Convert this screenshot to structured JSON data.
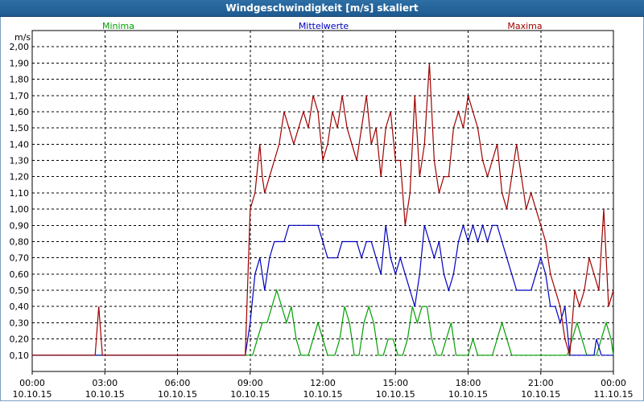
{
  "window": {
    "title": "Windgeschwindigkeit [m/s] skaliert"
  },
  "chart_data": {
    "type": "line",
    "title": "Windgeschwindigkeit [m/s] skaliert",
    "ylabel": "m/s",
    "ylim": [
      0,
      2.1
    ],
    "yticks": [
      "0,10",
      "0,20",
      "0,30",
      "0,40",
      "0,50",
      "0,60",
      "0,70",
      "0,80",
      "0,90",
      "1,00",
      "1,10",
      "1,20",
      "1,30",
      "1,40",
      "1,50",
      "1,60",
      "1,70",
      "1,80",
      "1,90",
      "2,00"
    ],
    "xlim": [
      0,
      24
    ],
    "xticks": [
      {
        "time": "00:00",
        "date": "10.10.15"
      },
      {
        "time": "03:00",
        "date": "10.10.15"
      },
      {
        "time": "06:00",
        "date": "10.10.15"
      },
      {
        "time": "09:00",
        "date": "10.10.15"
      },
      {
        "time": "12:00",
        "date": "10.10.15"
      },
      {
        "time": "15:00",
        "date": "10.10.15"
      },
      {
        "time": "18:00",
        "date": "10.10.15"
      },
      {
        "time": "21:00",
        "date": "10.10.15"
      },
      {
        "time": "00:00",
        "date": "11.10.15"
      }
    ],
    "grid": true,
    "legend_position": "top",
    "series": [
      {
        "name": "Minima",
        "color": "#00a000",
        "points": [
          [
            0,
            0.1
          ],
          [
            8.8,
            0.1
          ],
          [
            9.1,
            0.1
          ],
          [
            9.3,
            0.2
          ],
          [
            9.5,
            0.3
          ],
          [
            9.7,
            0.3
          ],
          [
            9.9,
            0.4
          ],
          [
            10.1,
            0.5
          ],
          [
            10.3,
            0.4
          ],
          [
            10.5,
            0.3
          ],
          [
            10.7,
            0.4
          ],
          [
            10.9,
            0.2
          ],
          [
            11.1,
            0.1
          ],
          [
            11.4,
            0.1
          ],
          [
            11.6,
            0.2
          ],
          [
            11.8,
            0.3
          ],
          [
            12.0,
            0.2
          ],
          [
            12.2,
            0.1
          ],
          [
            12.5,
            0.1
          ],
          [
            12.7,
            0.2
          ],
          [
            12.9,
            0.4
          ],
          [
            13.1,
            0.3
          ],
          [
            13.3,
            0.1
          ],
          [
            13.5,
            0.1
          ],
          [
            13.7,
            0.3
          ],
          [
            13.9,
            0.4
          ],
          [
            14.1,
            0.3
          ],
          [
            14.3,
            0.1
          ],
          [
            14.5,
            0.1
          ],
          [
            14.7,
            0.2
          ],
          [
            14.9,
            0.2
          ],
          [
            15.1,
            0.1
          ],
          [
            15.3,
            0.1
          ],
          [
            15.5,
            0.2
          ],
          [
            15.7,
            0.4
          ],
          [
            15.9,
            0.3
          ],
          [
            16.1,
            0.4
          ],
          [
            16.3,
            0.4
          ],
          [
            16.5,
            0.2
          ],
          [
            16.7,
            0.1
          ],
          [
            16.9,
            0.1
          ],
          [
            17.1,
            0.2
          ],
          [
            17.3,
            0.3
          ],
          [
            17.5,
            0.1
          ],
          [
            18.0,
            0.1
          ],
          [
            18.2,
            0.2
          ],
          [
            18.4,
            0.1
          ],
          [
            18.7,
            0.1
          ],
          [
            19.0,
            0.1
          ],
          [
            19.2,
            0.2
          ],
          [
            19.4,
            0.3
          ],
          [
            19.6,
            0.2
          ],
          [
            19.8,
            0.1
          ],
          [
            22.1,
            0.1
          ],
          [
            22.3,
            0.2
          ],
          [
            22.5,
            0.3
          ],
          [
            22.7,
            0.2
          ],
          [
            22.9,
            0.1
          ],
          [
            23.3,
            0.1
          ],
          [
            23.5,
            0.2
          ],
          [
            23.7,
            0.3
          ],
          [
            23.9,
            0.2
          ],
          [
            24.0,
            0.1
          ]
        ]
      },
      {
        "name": "Mittelwerte",
        "color": "#0000c0",
        "points": [
          [
            0,
            0.1
          ],
          [
            8.8,
            0.1
          ],
          [
            9.0,
            0.3
          ],
          [
            9.2,
            0.6
          ],
          [
            9.4,
            0.7
          ],
          [
            9.6,
            0.5
          ],
          [
            9.8,
            0.7
          ],
          [
            10.0,
            0.8
          ],
          [
            10.2,
            0.8
          ],
          [
            10.4,
            0.8
          ],
          [
            10.6,
            0.9
          ],
          [
            10.8,
            0.9
          ],
          [
            11.0,
            0.9
          ],
          [
            11.2,
            0.9
          ],
          [
            11.4,
            0.9
          ],
          [
            11.6,
            0.9
          ],
          [
            11.8,
            0.9
          ],
          [
            12.0,
            0.8
          ],
          [
            12.2,
            0.7
          ],
          [
            12.4,
            0.7
          ],
          [
            12.6,
            0.7
          ],
          [
            12.8,
            0.8
          ],
          [
            13.0,
            0.8
          ],
          [
            13.2,
            0.8
          ],
          [
            13.4,
            0.8
          ],
          [
            13.6,
            0.7
          ],
          [
            13.8,
            0.8
          ],
          [
            14.0,
            0.8
          ],
          [
            14.2,
            0.7
          ],
          [
            14.4,
            0.6
          ],
          [
            14.6,
            0.9
          ],
          [
            14.8,
            0.7
          ],
          [
            15.0,
            0.6
          ],
          [
            15.2,
            0.7
          ],
          [
            15.4,
            0.6
          ],
          [
            15.6,
            0.5
          ],
          [
            15.8,
            0.4
          ],
          [
            16.0,
            0.6
          ],
          [
            16.2,
            0.9
          ],
          [
            16.4,
            0.8
          ],
          [
            16.6,
            0.7
          ],
          [
            16.8,
            0.8
          ],
          [
            17.0,
            0.6
          ],
          [
            17.2,
            0.5
          ],
          [
            17.4,
            0.6
          ],
          [
            17.6,
            0.8
          ],
          [
            17.8,
            0.9
          ],
          [
            18.0,
            0.8
          ],
          [
            18.2,
            0.9
          ],
          [
            18.4,
            0.8
          ],
          [
            18.6,
            0.9
          ],
          [
            18.8,
            0.8
          ],
          [
            19.0,
            0.9
          ],
          [
            19.2,
            0.9
          ],
          [
            19.4,
            0.8
          ],
          [
            19.6,
            0.7
          ],
          [
            19.8,
            0.6
          ],
          [
            20.0,
            0.5
          ],
          [
            20.2,
            0.5
          ],
          [
            20.4,
            0.5
          ],
          [
            20.6,
            0.5
          ],
          [
            20.8,
            0.6
          ],
          [
            21.0,
            0.7
          ],
          [
            21.2,
            0.6
          ],
          [
            21.4,
            0.4
          ],
          [
            21.6,
            0.4
          ],
          [
            21.8,
            0.3
          ],
          [
            22.0,
            0.4
          ],
          [
            22.2,
            0.1
          ],
          [
            22.4,
            0.1
          ],
          [
            22.6,
            0.1
          ],
          [
            22.8,
            0.1
          ],
          [
            23.0,
            0.1
          ],
          [
            23.2,
            0.1
          ],
          [
            23.3,
            0.2
          ],
          [
            23.5,
            0.1
          ],
          [
            23.7,
            0.1
          ],
          [
            23.9,
            0.1
          ],
          [
            24.0,
            0.1
          ]
        ]
      },
      {
        "name": "Maxima",
        "color": "#a00000",
        "points": [
          [
            0,
            0.1
          ],
          [
            2.6,
            0.1
          ],
          [
            2.75,
            0.4
          ],
          [
            2.9,
            0.1
          ],
          [
            8.8,
            0.1
          ],
          [
            9.0,
            1.0
          ],
          [
            9.2,
            1.1
          ],
          [
            9.4,
            1.4
          ],
          [
            9.5,
            1.2
          ],
          [
            9.6,
            1.1
          ],
          [
            9.8,
            1.2
          ],
          [
            10.0,
            1.3
          ],
          [
            10.2,
            1.4
          ],
          [
            10.4,
            1.6
          ],
          [
            10.6,
            1.5
          ],
          [
            10.8,
            1.4
          ],
          [
            11.0,
            1.5
          ],
          [
            11.2,
            1.6
          ],
          [
            11.4,
            1.5
          ],
          [
            11.6,
            1.7
          ],
          [
            11.8,
            1.6
          ],
          [
            12.0,
            1.3
          ],
          [
            12.2,
            1.4
          ],
          [
            12.4,
            1.6
          ],
          [
            12.6,
            1.5
          ],
          [
            12.8,
            1.7
          ],
          [
            13.0,
            1.5
          ],
          [
            13.2,
            1.4
          ],
          [
            13.4,
            1.3
          ],
          [
            13.6,
            1.5
          ],
          [
            13.8,
            1.7
          ],
          [
            14.0,
            1.4
          ],
          [
            14.2,
            1.5
          ],
          [
            14.4,
            1.2
          ],
          [
            14.6,
            1.5
          ],
          [
            14.8,
            1.6
          ],
          [
            15.0,
            1.3
          ],
          [
            15.2,
            1.3
          ],
          [
            15.4,
            0.9
          ],
          [
            15.6,
            1.1
          ],
          [
            15.8,
            1.7
          ],
          [
            16.0,
            1.2
          ],
          [
            16.2,
            1.4
          ],
          [
            16.4,
            1.9
          ],
          [
            16.6,
            1.3
          ],
          [
            16.8,
            1.1
          ],
          [
            17.0,
            1.2
          ],
          [
            17.2,
            1.2
          ],
          [
            17.4,
            1.5
          ],
          [
            17.6,
            1.6
          ],
          [
            17.8,
            1.5
          ],
          [
            18.0,
            1.7
          ],
          [
            18.2,
            1.6
          ],
          [
            18.4,
            1.5
          ],
          [
            18.6,
            1.3
          ],
          [
            18.8,
            1.2
          ],
          [
            19.0,
            1.3
          ],
          [
            19.2,
            1.4
          ],
          [
            19.4,
            1.1
          ],
          [
            19.6,
            1.0
          ],
          [
            19.8,
            1.2
          ],
          [
            20.0,
            1.4
          ],
          [
            20.2,
            1.2
          ],
          [
            20.4,
            1.0
          ],
          [
            20.6,
            1.1
          ],
          [
            20.8,
            1.0
          ],
          [
            21.0,
            0.9
          ],
          [
            21.2,
            0.8
          ],
          [
            21.4,
            0.6
          ],
          [
            21.6,
            0.5
          ],
          [
            21.8,
            0.4
          ],
          [
            22.0,
            0.2
          ],
          [
            22.2,
            0.1
          ],
          [
            22.4,
            0.5
          ],
          [
            22.6,
            0.4
          ],
          [
            22.8,
            0.5
          ],
          [
            23.0,
            0.7
          ],
          [
            23.2,
            0.6
          ],
          [
            23.4,
            0.5
          ],
          [
            23.6,
            1.0
          ],
          [
            23.8,
            0.4
          ],
          [
            24.0,
            0.5
          ]
        ]
      }
    ]
  }
}
